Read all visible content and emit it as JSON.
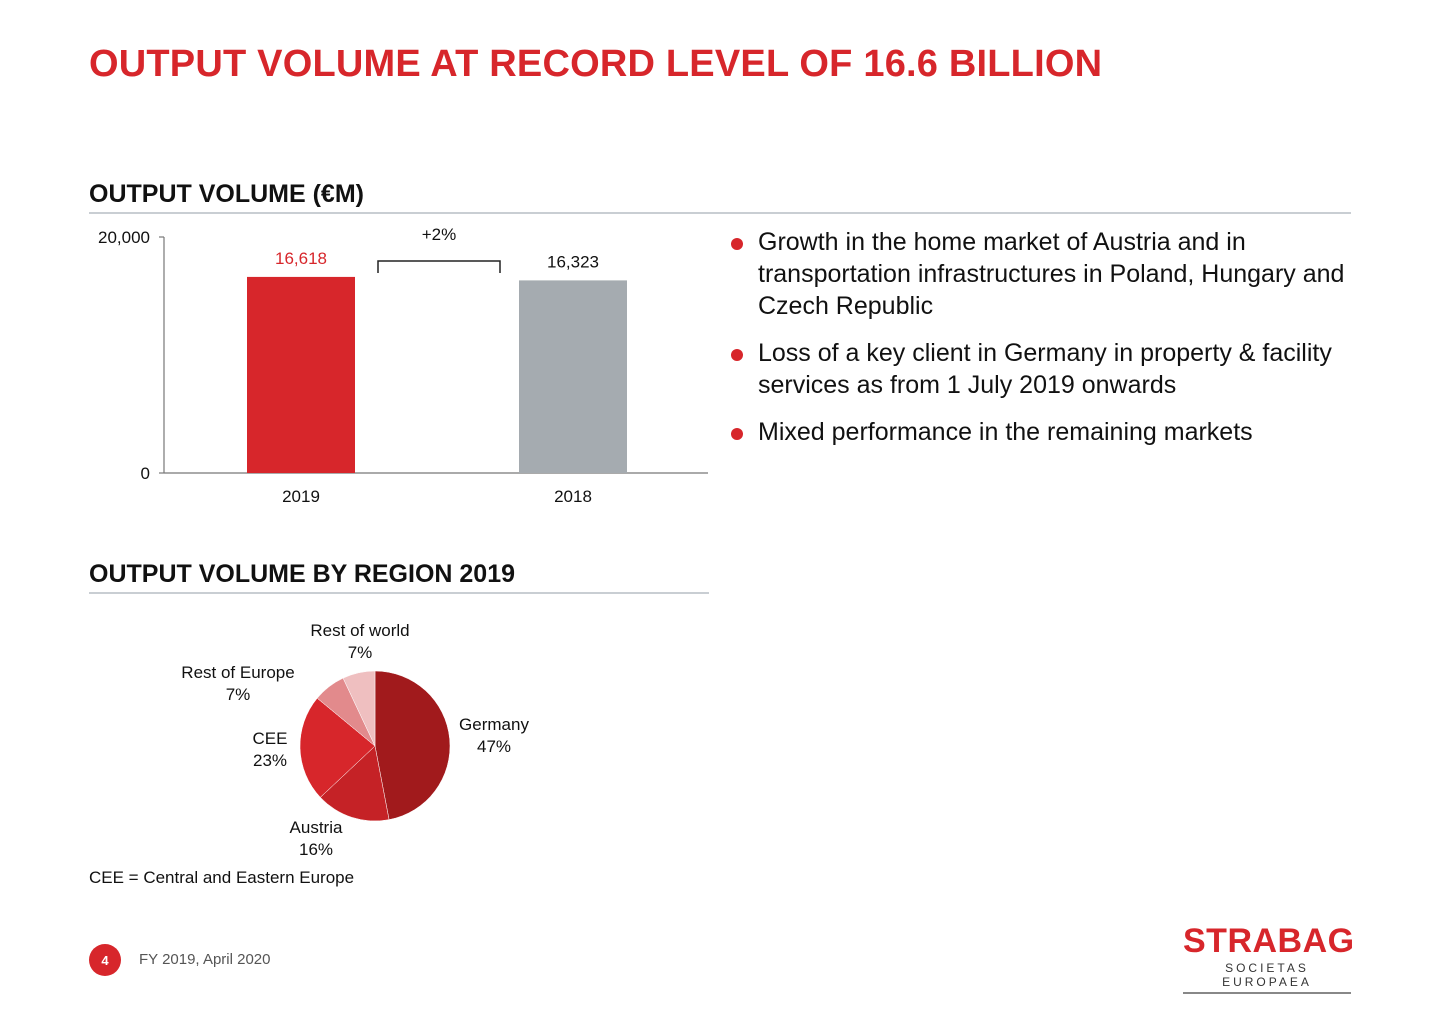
{
  "slide": {
    "title": "OUTPUT VOLUME AT RECORD LEVEL OF 16.6 BILLION",
    "page_number": "4",
    "footer": "FY 2019, April 2020",
    "logo": {
      "name": "STRABAG",
      "subtitle": "SOCIETAS EUROPAEA"
    }
  },
  "bar_section": {
    "heading": "OUTPUT VOLUME (€M)"
  },
  "pie_section": {
    "heading": "OUTPUT VOLUME BY REGION 2019",
    "footnote": "CEE = Central and Eastern Europe"
  },
  "bullets": [
    "Growth in the home market of Austria and in transportation infrastructures in Poland, Hungary and Czech Republic",
    "Loss of a key client in Germany in property & facility services as from 1 July 2019 onwards",
    "Mixed performance in the remaining markets"
  ],
  "colors": {
    "accent": "#d7262b",
    "bar_2019": "#d7262b",
    "bar_2018": "#a5abb0",
    "germany": "#a11a1c",
    "austria": "#c52226",
    "cee": "#d7262b",
    "rest_of_europe": "#e28a8c",
    "rest_of_world": "#efbfc0"
  },
  "chart_data": [
    {
      "type": "bar",
      "title": "OUTPUT VOLUME (€M)",
      "categories": [
        "2019",
        "2018"
      ],
      "values": [
        16618,
        16323
      ],
      "value_labels": [
        "16,618",
        "16,323"
      ],
      "ylim": [
        0,
        20000
      ],
      "yticks": [
        0,
        20000
      ],
      "ytick_labels": [
        "0",
        "20,000"
      ],
      "annotation": "+2%",
      "grid": false
    },
    {
      "type": "pie",
      "title": "OUTPUT VOLUME BY REGION 2019",
      "labels": [
        "Germany",
        "Austria",
        "CEE",
        "Rest of Europe",
        "Rest of world"
      ],
      "values": [
        47,
        16,
        23,
        7,
        7
      ],
      "value_labels": [
        "47%",
        "16%",
        "23%",
        "7%",
        "7%"
      ]
    }
  ]
}
